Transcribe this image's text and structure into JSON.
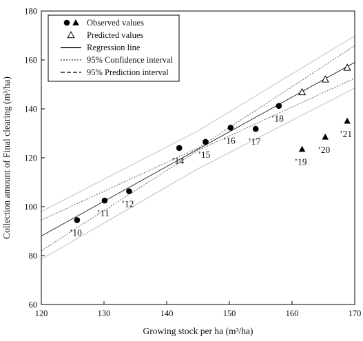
{
  "chart_data": {
    "type": "scatter",
    "xlabel": "Growing stock per ha (m³/ha)",
    "ylabel": "Collection amount of Final clearing (m³/ha)",
    "xlim": [
      120,
      170
    ],
    "ylim": [
      60,
      180
    ],
    "xticks": [
      "120",
      "130",
      "140",
      "150",
      "160",
      "170"
    ],
    "yticks": [
      "60",
      "80",
      "100",
      "120",
      "140",
      "160",
      "180"
    ],
    "legend_position": "top-left",
    "legend": [
      {
        "key": "observed",
        "label": "Observed values"
      },
      {
        "key": "predicted",
        "label": "Predicted values"
      },
      {
        "key": "regression",
        "label": "Regression line"
      },
      {
        "key": "confidence",
        "label": "95% Confidence interval"
      },
      {
        "key": "prediction",
        "label": "95% Prediction interval"
      }
    ],
    "series": [
      {
        "name": "Observed values",
        "marker": "circle",
        "points": [
          {
            "x": 125.7,
            "y": 94.5,
            "label": "’10"
          },
          {
            "x": 130.1,
            "y": 102.5,
            "label": "’11"
          },
          {
            "x": 134.0,
            "y": 106.3,
            "label": "’12"
          },
          {
            "x": 142.0,
            "y": 124.0,
            "label": "’14"
          },
          {
            "x": 146.2,
            "y": 126.5,
            "label": "’15"
          },
          {
            "x": 150.2,
            "y": 132.3,
            "label": "’16"
          },
          {
            "x": 154.2,
            "y": 131.8,
            "label": "’17"
          },
          {
            "x": 157.9,
            "y": 141.2,
            "label": "’18"
          }
        ]
      },
      {
        "name": "Observed values",
        "marker": "triangle-filled",
        "points": [
          {
            "x": 161.6,
            "y": 123.5,
            "label": "’19"
          },
          {
            "x": 165.3,
            "y": 128.5,
            "label": "’20"
          },
          {
            "x": 168.8,
            "y": 135.0,
            "label": "’21"
          }
        ]
      },
      {
        "name": "Predicted values",
        "marker": "triangle-open",
        "points": [
          {
            "x": 161.6,
            "y": 146.8
          },
          {
            "x": 165.3,
            "y": 152.0
          },
          {
            "x": 168.8,
            "y": 156.8
          }
        ]
      }
    ],
    "regression_line": {
      "x": [
        120,
        170
      ],
      "y": [
        88.0,
        159.0
      ]
    },
    "confidence_interval": {
      "upper": {
        "x": [
          120,
          145,
          170
        ],
        "y": [
          94.5,
          124.0,
          165.8
        ]
      },
      "lower": {
        "x": [
          120,
          145,
          170
        ],
        "y": [
          82.0,
          123.0,
          152.5
        ]
      }
    },
    "prediction_interval": {
      "upper": {
        "x": [
          120,
          145,
          170
        ],
        "y": [
          98.0,
          131.0,
          169.8
        ]
      },
      "lower": {
        "x": [
          120,
          145,
          170
        ],
        "y": [
          78.5,
          115.5,
          148.5
        ]
      }
    },
    "colors": {
      "axis": "#000000",
      "marker": "#000000",
      "regression": "#333333",
      "confidence": "#777777",
      "prediction": "#bfbfbf"
    }
  }
}
